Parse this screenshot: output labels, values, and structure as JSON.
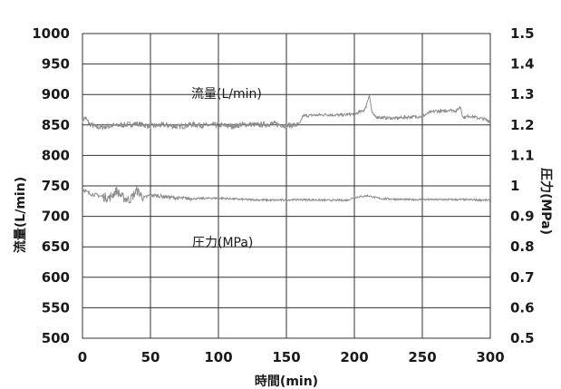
{
  "chart_data": {
    "type": "line",
    "xlabel": "時間(min)",
    "ylabel_left": "流量(L/min)",
    "ylabel_right": "圧力(MPa)",
    "xlim": [
      0,
      300
    ],
    "ylim_left": [
      500,
      1000
    ],
    "ylim_right": [
      0.5,
      1.5
    ],
    "x_ticks": [
      0,
      50,
      100,
      150,
      200,
      250,
      300
    ],
    "y_left_ticks": [
      500,
      550,
      600,
      650,
      700,
      750,
      800,
      850,
      900,
      950,
      1000
    ],
    "y_right_ticks": [
      "0.5",
      "0.6",
      "0.7",
      "0.8",
      "0.9",
      "1",
      "1.1",
      "1.2",
      "1.3",
      "1.4",
      "1.5"
    ],
    "grid": "on",
    "series": [
      {
        "name": "流量(L/min)",
        "axis": "left",
        "color": "#8c8c8c",
        "x": [
          0,
          2,
          5,
          10,
          20,
          30,
          40,
          50,
          60,
          70,
          80,
          90,
          100,
          110,
          120,
          130,
          140,
          150,
          158,
          160,
          162,
          170,
          180,
          190,
          200,
          205,
          208,
          211,
          213,
          215,
          220,
          230,
          240,
          250,
          255,
          260,
          265,
          270,
          275,
          278,
          280,
          285,
          290,
          295,
          300
        ],
        "values": [
          858,
          862,
          852,
          846,
          848,
          850,
          852,
          848,
          850,
          847,
          851,
          849,
          850,
          848,
          851,
          850,
          852,
          849,
          850,
          851,
          865,
          866,
          867,
          866,
          868,
          872,
          876,
          900,
          870,
          864,
          862,
          861,
          863,
          864,
          870,
          873,
          872,
          875,
          873,
          880,
          862,
          865,
          862,
          860,
          856
        ]
      },
      {
        "name": "圧力(MPa)",
        "axis": "right",
        "color": "#8c8c8c",
        "x": [
          0,
          5,
          10,
          15,
          20,
          25,
          30,
          35,
          40,
          45,
          50,
          60,
          70,
          80,
          100,
          120,
          140,
          160,
          180,
          195,
          200,
          205,
          210,
          215,
          220,
          240,
          260,
          280,
          300
        ],
        "values": [
          0.99,
          0.975,
          0.97,
          0.965,
          0.96,
          0.985,
          0.96,
          0.955,
          0.985,
          0.96,
          0.97,
          0.965,
          0.96,
          0.958,
          0.96,
          0.955,
          0.953,
          0.955,
          0.953,
          0.953,
          0.962,
          0.965,
          0.968,
          0.962,
          0.958,
          0.955,
          0.955,
          0.955,
          0.953
        ]
      }
    ]
  }
}
